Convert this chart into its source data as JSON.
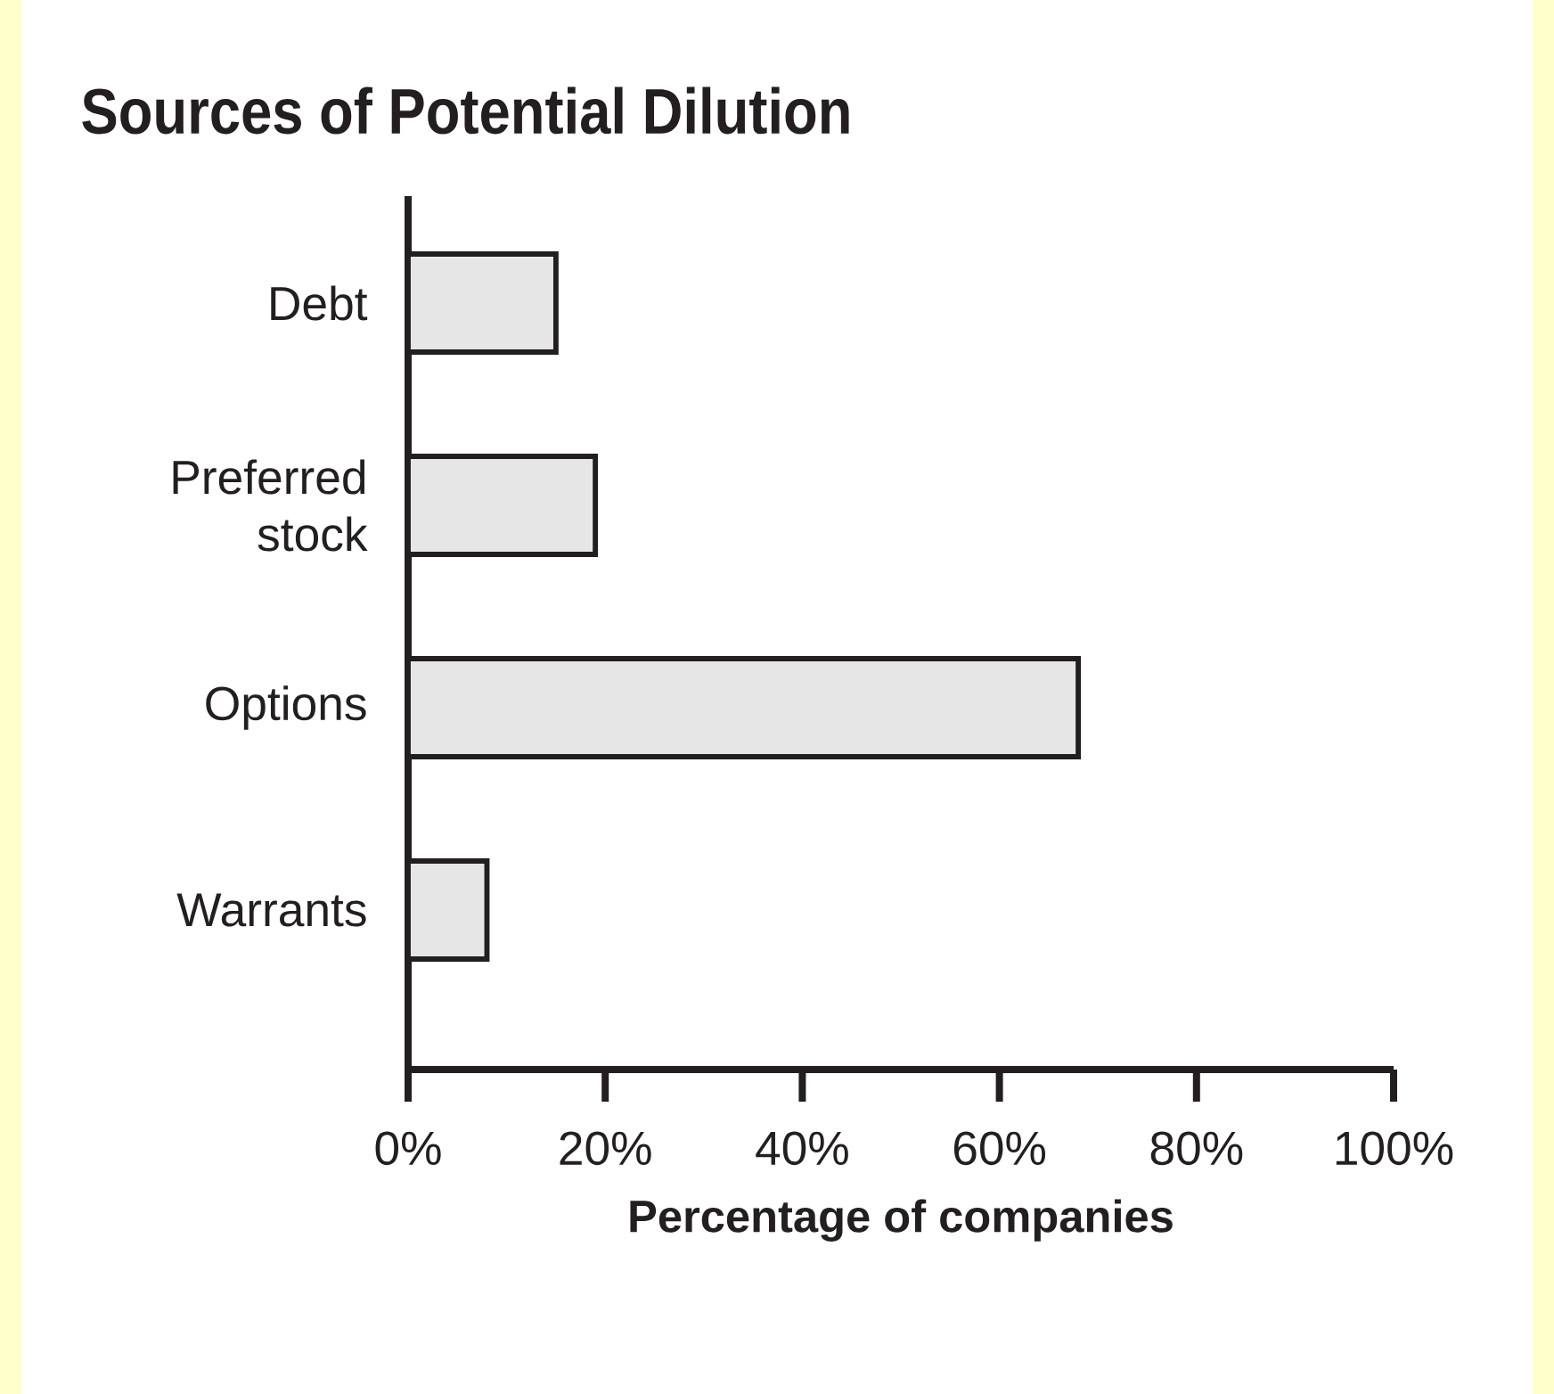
{
  "chart_data": {
    "type": "bar",
    "orientation": "horizontal",
    "title": "Sources of Potential Dilution",
    "categories": [
      "Debt",
      "Preferred stock",
      "Options",
      "Warrants"
    ],
    "values": [
      15,
      19,
      68,
      8
    ],
    "color": "#e6e6e6",
    "xlabel": "Percentage of companies",
    "xlim": [
      0,
      100
    ],
    "xticks": [
      {
        "value": 0,
        "label": "0%"
      },
      {
        "value": 20,
        "label": "20%"
      },
      {
        "value": 40,
        "label": "40%"
      },
      {
        "value": 60,
        "label": "60%"
      },
      {
        "value": 80,
        "label": "80%"
      },
      {
        "value": 100,
        "label": "100%"
      }
    ],
    "grid": false
  }
}
